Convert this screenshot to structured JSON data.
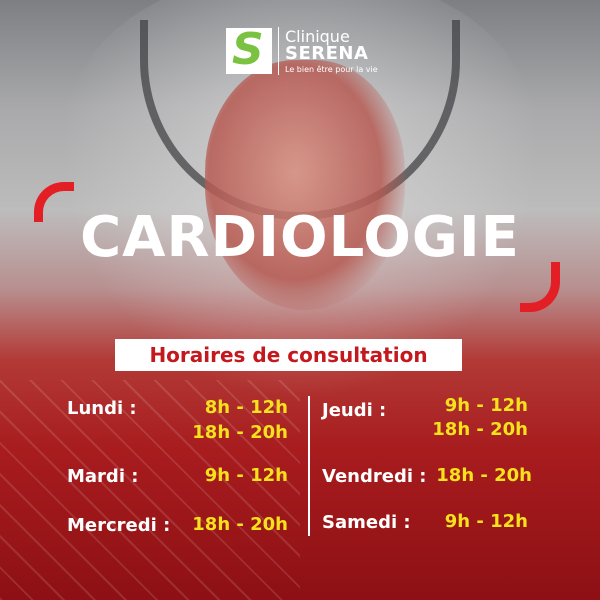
{
  "brand": {
    "name_line1": "Clinique",
    "name_line2": "SERENA",
    "tagline": "Le bien être pour la vie",
    "logo_letter": "S"
  },
  "title": "CARDIOLOGIE",
  "subtitle": "Horaires de consultation",
  "colors": {
    "accent_red": "#e31e24",
    "time_yellow": "#f6e21c",
    "text_white": "#ffffff"
  },
  "schedule": [
    {
      "day": "Lundi :",
      "times": [
        "8h - 12h",
        "18h - 20h"
      ]
    },
    {
      "day": "Mardi :",
      "times": [
        "9h - 12h"
      ]
    },
    {
      "day": "Mercredi :",
      "times": [
        "18h - 20h"
      ]
    },
    {
      "day": "Jeudi :",
      "times": [
        "9h - 12h",
        "18h - 20h"
      ]
    },
    {
      "day": "Vendredi :",
      "times": [
        "18h - 20h"
      ]
    },
    {
      "day": "Samedi :",
      "times": [
        "9h - 12h"
      ]
    }
  ]
}
